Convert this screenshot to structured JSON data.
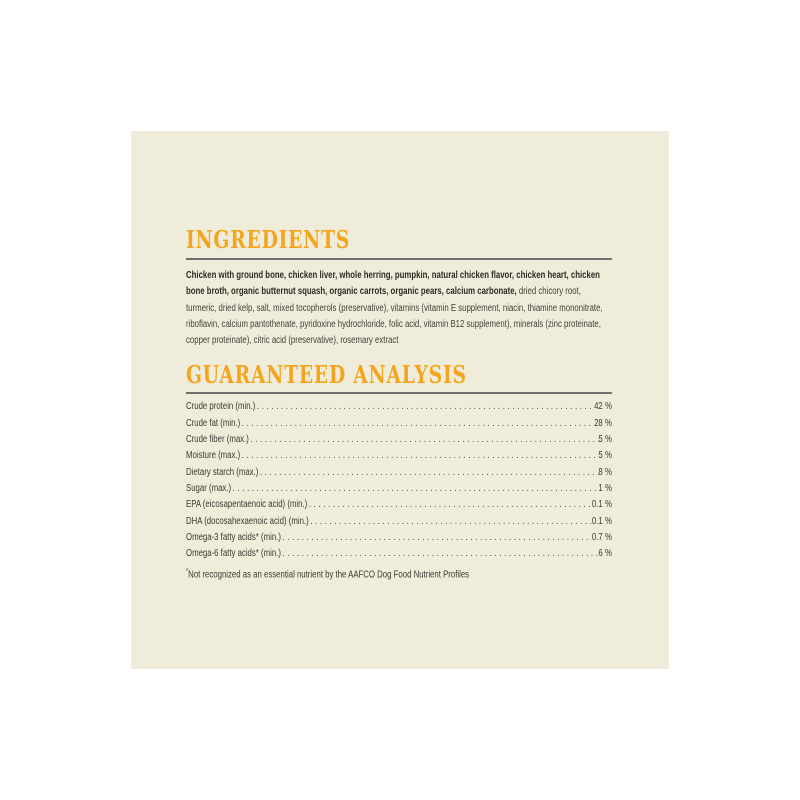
{
  "ingredients": {
    "heading": "INGREDIENTS",
    "bold_text": "Chicken with ground bone, chicken liver, whole herring, pumpkin, natural chicken flavor, chicken heart, chicken bone broth, organic butternut squash, organic carrots, organic pears, calcium carbonate,",
    "regular_text": " dried chicory root, turmeric, dried kelp, salt, mixed tocopherols (preservative), vitamins (vitamin E supplement, niacin, thiamine mononitrate, riboflavin, calcium pantothenate, pyridoxine hydrochloride, folic acid, vitamin B12 supplement), minerals (zinc proteinate, copper proteinate), citric acid (preservative), rosemary extract"
  },
  "guaranteed_analysis": {
    "heading": "GUARANTEED ANALYSIS",
    "rows": [
      {
        "label": "Crude protein (min.)",
        "value": "42 %"
      },
      {
        "label": "Crude fat (min.)",
        "value": "28 %"
      },
      {
        "label": "Crude fiber (max.)",
        "value": "5 %"
      },
      {
        "label": "Moisture (max.)",
        "value": "5 %"
      },
      {
        "label": "Dietary starch (max.)",
        "value": "8 %"
      },
      {
        "label": "Sugar (max.)",
        "value": "1 %"
      },
      {
        "label": "EPA (eicosapentaenoic acid) (min.)",
        "value": "0.1 %"
      },
      {
        "label": "DHA (docosahexaenoic acid) (min.)",
        "value": "0.1 %"
      },
      {
        "label": "Omega-3 fatty acids* (min.)",
        "value": "0.7 %"
      },
      {
        "label": "Omega-6 fatty acids* (min.)",
        "value": "6 %"
      }
    ],
    "footnote_marker": "*",
    "footnote_text": "Not recognized as an essential nutrient by the AAFCO Dog Food Nutrient Profiles"
  },
  "colors": {
    "accent_orange": "#f5a41e",
    "panel_background": "#efedda",
    "rule_gray": "#6f6f6f",
    "text_dark": "#3a3731"
  }
}
